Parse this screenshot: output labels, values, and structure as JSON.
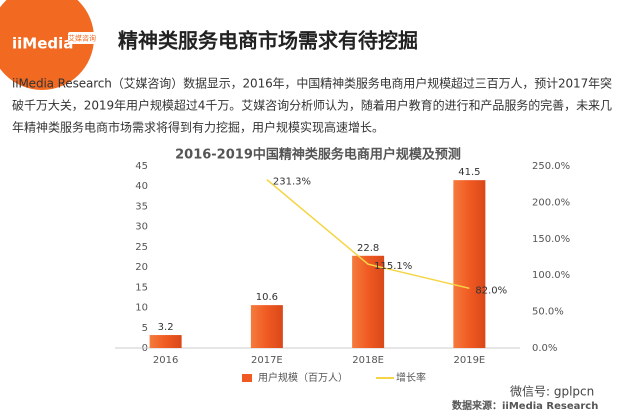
{
  "header": {
    "logo": "iiMedia",
    "logo_sub": "艾媒咨询",
    "title": "精神类服务电商市场需求有待挖掘"
  },
  "paragraph": [
    "iiMedia Research（艾媒咨询）数据显示，2016年，中国精神类服务电商用户规模超过三百万人，预计2017年突",
    "破千万大关，2019年用户规模超过4千万。艾媒咨询分析师认为，随着用户教育的进行和产品服务的完善，未来几",
    "年精神类服务电商市场需求将得到有力挖掘，用户规模实现高速增长。"
  ],
  "chart_data": {
    "type": "bar",
    "title": "2016-2019中国精神类服务电商用户规模及预测",
    "categories": [
      "2016",
      "2017E",
      "2018E",
      "2019E"
    ],
    "series": [
      {
        "name": "用户规模（百万人）",
        "type": "bar",
        "color": "#f05a22",
        "values": [
          3.2,
          10.6,
          22.8,
          41.5
        ]
      },
      {
        "name": "增长率",
        "type": "line",
        "axis": "y2",
        "color": "#f5d547",
        "values": [
          null,
          231.3,
          115.1,
          82.0
        ],
        "value_labels": [
          null,
          "231.3%",
          "115.1%",
          "82.0%"
        ]
      }
    ],
    "ylim": [
      0,
      45
    ],
    "yticks": [
      0,
      5,
      10,
      15,
      20,
      25,
      30,
      35,
      40,
      45
    ],
    "y2lim": [
      0,
      250
    ],
    "y2ticks": [
      {
        "value": 0,
        "label": "0.0%"
      },
      {
        "value": 50,
        "label": "50.0%"
      },
      {
        "value": 100,
        "label": "100.0%"
      },
      {
        "value": 150,
        "label": "150.0%"
      },
      {
        "value": 200,
        "label": "200.0%"
      },
      {
        "value": 250,
        "label": "250.0%"
      }
    ],
    "legend": "bottom"
  },
  "footer": {
    "wechat": "微信号: gplpcn",
    "source": "数据来源：iiMedia Research"
  }
}
